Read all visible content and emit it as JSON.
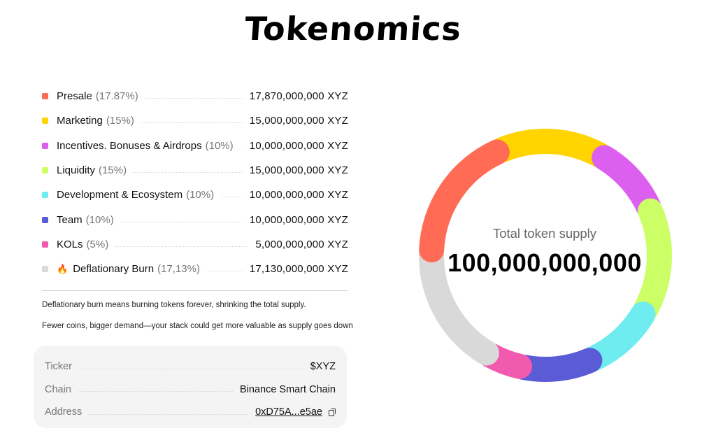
{
  "title": "Tokenomics",
  "allocations": [
    {
      "name": "Presale",
      "pct_label": "(17.87%)",
      "amount": "17,870,000,000 XYZ",
      "color": "#FF6B55",
      "share": 17.87
    },
    {
      "name": "Marketing",
      "pct_label": "(15%)",
      "amount": "15,000,000,000 XYZ",
      "color": "#FFD400",
      "share": 15
    },
    {
      "name": "Incentives. Bonuses & Airdrops",
      "pct_label": "(10%)",
      "amount": "10,000,000,000 XYZ",
      "color": "#DD5FF0",
      "share": 10
    },
    {
      "name": "Liquidity",
      "pct_label": "(15%)",
      "amount": "15,000,000,000 XYZ",
      "color": "#CCFF66",
      "share": 15
    },
    {
      "name": "Development & Ecosystem",
      "pct_label": "(10%)",
      "amount": "10,000,000,000 XYZ",
      "color": "#6EECF0",
      "share": 10
    },
    {
      "name": "Team",
      "pct_label": "(10%)",
      "amount": "10,000,000,000 XYZ",
      "color": "#5B5BD6",
      "share": 10
    },
    {
      "name": "KOLs",
      "pct_label": "(5%)",
      "amount": "5,000,000,000 XYZ",
      "color": "#F25AB0",
      "share": 5
    },
    {
      "name": "Deflationary Burn",
      "pct_label": "(17,13%)",
      "amount": "17,130,000,000 XYZ",
      "color": "#D9D9D9",
      "share": 17.13,
      "icon": "fire-icon",
      "icon_glyph": "🔥"
    }
  ],
  "notes": [
    "Deflationary burn means burning tokens forever, shrinking the total supply.",
    "Fewer coins, bigger demand—your stack could get more valuable as supply goes down"
  ],
  "token_info": {
    "ticker_label": "Ticker",
    "ticker_value": "$XYZ",
    "chain_label": "Chain",
    "chain_value": "Binance Smart Chain",
    "address_label": "Address",
    "address_value": "0xD75A...e5ae",
    "copy_icon": "copy-icon"
  },
  "donut": {
    "center_label": "Total token supply",
    "center_value": "100,000,000,000"
  }
}
